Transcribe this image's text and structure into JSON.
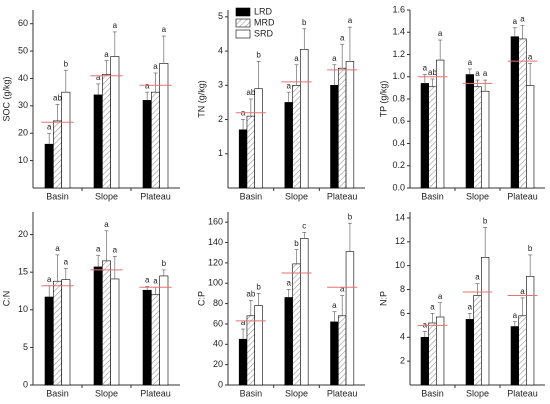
{
  "chart_data": [
    {
      "type": "bar",
      "ylabel": "SOC (g/kg)",
      "categories": [
        "Basin",
        "Slope",
        "Plateau"
      ],
      "ylim": [
        0,
        65
      ],
      "yticks": [
        10,
        20,
        30,
        40,
        50,
        60
      ],
      "series": [
        {
          "color": "#000000",
          "values": [
            16,
            34,
            32
          ],
          "errors": [
            4,
            4,
            3
          ],
          "letters": [
            "a",
            "a",
            "a"
          ]
        },
        {
          "color": "#ffffff",
          "hatch": true,
          "values": [
            24.5,
            41.5,
            35
          ],
          "errors": [
            6,
            5,
            7
          ],
          "letters": [
            "ab",
            "a",
            "a"
          ]
        },
        {
          "color": "#ffffff",
          "values": [
            35,
            48,
            45.5
          ],
          "errors": [
            8,
            9,
            10
          ],
          "letters": [
            "b",
            "a",
            "a"
          ]
        }
      ],
      "means": [
        24,
        41,
        37.5
      ],
      "mean_color": "#e57373"
    },
    {
      "type": "bar",
      "ylabel": "TN (g/kg)",
      "categories": [
        "Basin",
        "Slope",
        "Plateau"
      ],
      "ylim": [
        0,
        5.2
      ],
      "yticks": [
        1,
        2,
        3,
        4,
        5
      ],
      "series": [
        {
          "name": "LRD",
          "color": "#000000",
          "values": [
            1.7,
            2.5,
            3.0
          ],
          "errors": [
            0.3,
            0.3,
            0.6
          ],
          "letters": [
            "a",
            "a",
            "a"
          ]
        },
        {
          "name": "MRD",
          "color": "#ffffff",
          "hatch": true,
          "values": [
            2.1,
            3.0,
            3.5
          ],
          "errors": [
            0.5,
            0.6,
            0.7
          ],
          "letters": [
            "ab",
            "a",
            "a"
          ]
        },
        {
          "name": "SRD",
          "color": "#ffffff",
          "values": [
            2.9,
            4.05,
            3.7
          ],
          "errors": [
            0.8,
            0.6,
            1.0
          ],
          "letters": [
            "b",
            "b",
            "a"
          ]
        }
      ],
      "means": [
        2.2,
        3.1,
        3.45
      ],
      "mean_color": "#e57373",
      "legend": "upper left"
    },
    {
      "type": "bar",
      "ylabel": "TP (g/kg)",
      "categories": [
        "Basin",
        "Slope",
        "Plateau"
      ],
      "ylim": [
        0,
        1.6
      ],
      "yticks": [
        {
          "value": 0,
          "label": "0.0"
        },
        0.2,
        0.4,
        0.6,
        0.8,
        {
          "value": 1,
          "label": "1.0"
        },
        1.2,
        1.4,
        1.6
      ],
      "series": [
        {
          "color": "#000000",
          "values": [
            0.94,
            1.02,
            1.36
          ],
          "errors": [
            0.08,
            0.05,
            0.08
          ],
          "letters": [
            "a",
            "a",
            "a"
          ]
        },
        {
          "color": "#ffffff",
          "hatch": true,
          "values": [
            0.91,
            0.91,
            1.34
          ],
          "errors": [
            0.07,
            0.06,
            0.12
          ],
          "letters": [
            "ab",
            "a",
            "a"
          ]
        },
        {
          "color": "#ffffff",
          "values": [
            1.15,
            0.87,
            0.92
          ],
          "errors": [
            0.18,
            0.1,
            0.2
          ],
          "letters": [
            "a",
            "a",
            "a"
          ]
        }
      ],
      "means": [
        1.0,
        0.94,
        1.14
      ],
      "mean_color": "#e57373"
    },
    {
      "type": "bar",
      "ylabel": "C:N",
      "categories": [
        "Basin",
        "Slope",
        "Plateau"
      ],
      "ylim": [
        0,
        23
      ],
      "yticks": [
        0,
        5,
        10,
        15,
        20
      ],
      "series": [
        {
          "color": "#000000",
          "values": [
            11.7,
            15.7,
            12.6
          ],
          "errors": [
            1.5,
            1.5,
            0.5
          ],
          "letters": [
            "a",
            "a",
            "a"
          ]
        },
        {
          "color": "#ffffff",
          "hatch": true,
          "values": [
            13.8,
            16.5,
            12.0
          ],
          "errors": [
            3.5,
            4,
            1
          ],
          "letters": [
            "a",
            "a",
            "a"
          ]
        },
        {
          "color": "#ffffff",
          "values": [
            14.0,
            14.1,
            14.5
          ],
          "errors": [
            1.5,
            3,
            0.8
          ],
          "letters": [
            "a",
            "a",
            "b"
          ]
        }
      ],
      "means": [
        13.2,
        15.3,
        13.0
      ],
      "mean_color": "#e57373"
    },
    {
      "type": "bar",
      "ylabel": "C:P",
      "categories": [
        "Basin",
        "Slope",
        "Plateau"
      ],
      "ylim": [
        0,
        170
      ],
      "yticks": [
        0,
        20,
        40,
        60,
        80,
        100,
        120,
        140,
        160
      ],
      "series": [
        {
          "color": "#000000",
          "values": [
            45,
            86,
            62
          ],
          "errors": [
            10,
            8,
            10
          ],
          "letters": [
            "a",
            "a",
            "a"
          ]
        },
        {
          "color": "#ffffff",
          "hatch": true,
          "values": [
            68,
            119,
            68
          ],
          "errors": [
            15,
            14,
            20
          ],
          "letters": [
            "ab",
            "b",
            "a"
          ]
        },
        {
          "color": "#ffffff",
          "values": [
            78,
            144,
            131
          ],
          "errors": [
            12,
            6,
            28
          ],
          "letters": [
            "b",
            "c",
            "b"
          ]
        }
      ],
      "means": [
        63,
        110,
        96
      ],
      "mean_color": "#e57373"
    },
    {
      "type": "bar",
      "ylabel": "N:P",
      "categories": [
        "Basin",
        "Slope",
        "Plateau"
      ],
      "ylim": [
        0,
        14.5
      ],
      "yticks": [
        2,
        4,
        6,
        8,
        10,
        12,
        14
      ],
      "series": [
        {
          "color": "#000000",
          "values": [
            4.0,
            5.5,
            4.9
          ],
          "errors": [
            0.5,
            0.5,
            0.4
          ],
          "letters": [
            "a",
            "a",
            "a"
          ]
        },
        {
          "color": "#ffffff",
          "hatch": true,
          "values": [
            5.2,
            7.5,
            5.8
          ],
          "errors": [
            0.8,
            1,
            1.5
          ],
          "letters": [
            "a",
            "a",
            "a"
          ]
        },
        {
          "color": "#ffffff",
          "values": [
            5.7,
            10.7,
            9.1
          ],
          "errors": [
            1.2,
            2.5,
            1.8
          ],
          "letters": [
            "a",
            "b",
            "b"
          ]
        }
      ],
      "means": [
        5.0,
        7.8,
        7.5
      ],
      "mean_color": "#e57373"
    }
  ]
}
